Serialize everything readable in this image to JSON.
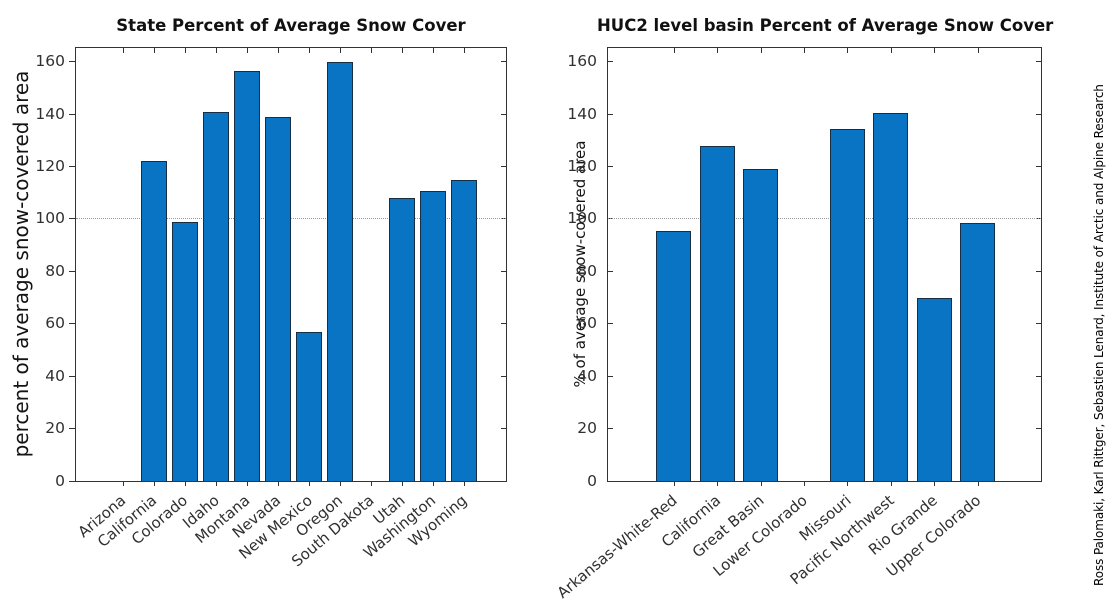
{
  "credit": "Ross Palomaki, Karl Rittger, Sebastien Lenard, Institute of Arctic and Alpine Research",
  "colors": {
    "bar_fill": "#0a74c4",
    "bar_edge": "#162f45",
    "axis": "#333333",
    "tick_label": "#303030",
    "reference_line": "#9a9a9a",
    "title": "#111111"
  },
  "chart_data": [
    {
      "type": "bar",
      "title": "State Percent of Average Snow Cover",
      "ylabel": "percent of average snow-covered area",
      "xlabel": "",
      "categories": [
        "Arizona",
        "California",
        "Colorado",
        "Idaho",
        "Montana",
        "Nevada",
        "New Mexico",
        "Oregon",
        "South Dakota",
        "Utah",
        "Washington",
        "Wyoming"
      ],
      "values": [
        0,
        122,
        99,
        141,
        156.5,
        139,
        57,
        160,
        0,
        108,
        110.5,
        115
      ],
      "ylim": [
        0,
        166
      ],
      "yticks": [
        0,
        20,
        40,
        60,
        80,
        100,
        120,
        140,
        160
      ],
      "reference_line": 100,
      "grid": false,
      "legend": null
    },
    {
      "type": "bar",
      "title": "HUC2 level basin Percent of Average Snow Cover",
      "ylabel": "% of average snow-covered area",
      "xlabel": "",
      "categories": [
        "Arkansas-White-Red",
        "California",
        "Great Basin",
        "Lower Colorado",
        "Missouri",
        "Pacific Northwest",
        "Rio Grande",
        "Upper Colorado"
      ],
      "values": [
        95.5,
        128,
        119,
        0,
        134.5,
        140.5,
        70,
        98.5
      ],
      "ylim": [
        0,
        166
      ],
      "yticks": [
        0,
        20,
        40,
        60,
        80,
        100,
        120,
        140,
        160
      ],
      "reference_line": 100,
      "grid": false,
      "legend": null
    }
  ]
}
